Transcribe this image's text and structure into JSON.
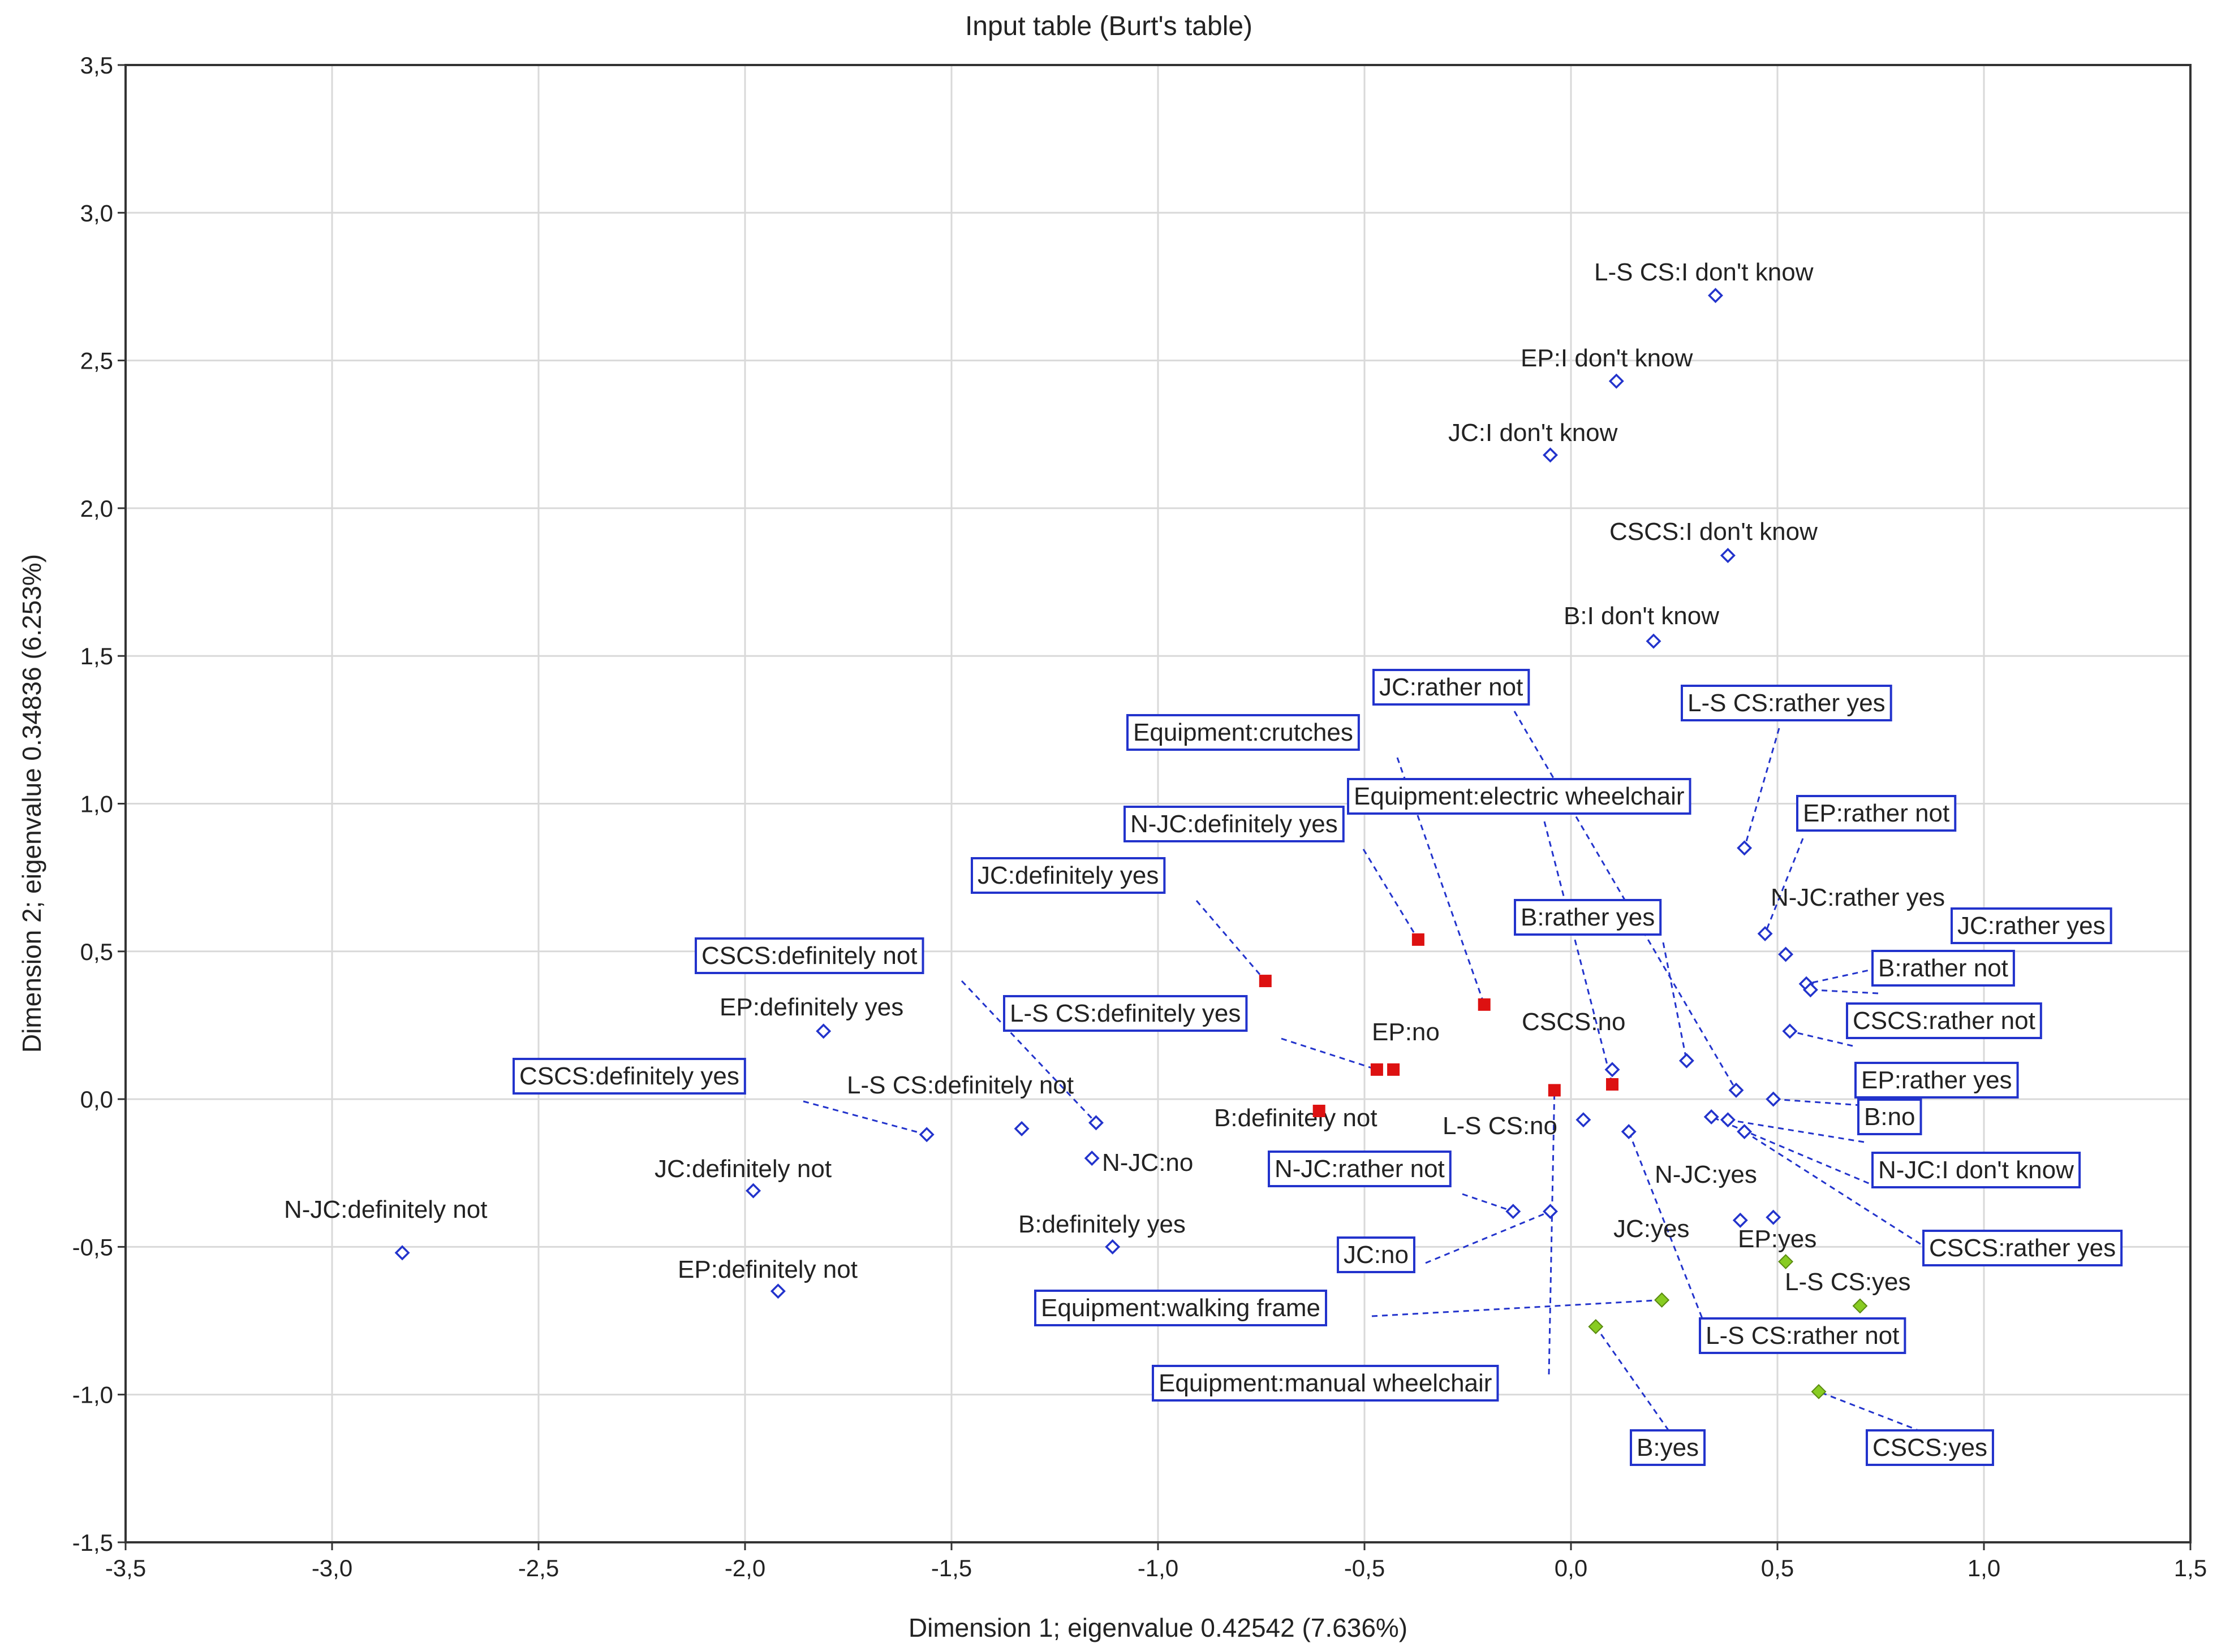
{
  "chart_data": {
    "type": "scatter",
    "title": "Input table (Burt's table)",
    "xlabel": "Dimension 1; eigenvalue 0.42542 (7.636%)",
    "ylabel": "Dimension 2; eigenvalue 0.34836 (6.253%)",
    "xlim": [
      -3.5,
      1.5
    ],
    "ylim": [
      -1.5,
      3.5
    ],
    "xticks": [
      "-3,5",
      "-3,0",
      "-2,5",
      "-2,0",
      "-1,5",
      "-1,0",
      "-0,5",
      "0,0",
      "0,5",
      "1,0",
      "1,5"
    ],
    "yticks": [
      "3,5",
      "3,0",
      "2,5",
      "2,0",
      "1,5",
      "1,0",
      "0,5",
      "0,0",
      "-0,5",
      "-1,0",
      "-1,5"
    ],
    "grid": true,
    "colors": {
      "response": "#2233cc",
      "equipment": "#dd1111",
      "yes_group": "#88cc22",
      "label_box": "#2233cc",
      "grid": "#d9d9d9"
    },
    "series": [
      {
        "name": "responses",
        "marker": "open-diamond",
        "points": [
          {
            "label": "L-S CS:I don't know",
            "x": 0.35,
            "y": 2.72,
            "boxed": false
          },
          {
            "label": "EP:I don't know",
            "x": 0.11,
            "y": 2.43,
            "boxed": false
          },
          {
            "label": "JC:I don't know",
            "x": -0.05,
            "y": 2.18,
            "boxed": false
          },
          {
            "label": "CSCS:I don't know",
            "x": 0.38,
            "y": 1.84,
            "boxed": false
          },
          {
            "label": "B:I don't know",
            "x": 0.2,
            "y": 1.55,
            "boxed": false
          },
          {
            "label": "JC:rather not",
            "x": 0.4,
            "y": 0.03,
            "boxed": true
          },
          {
            "label": "L-S CS:rather yes",
            "x": 0.42,
            "y": 0.85,
            "boxed": true
          },
          {
            "label": "EP:rather not",
            "x": 0.47,
            "y": 0.56,
            "boxed": true
          },
          {
            "label": "N-JC:rather yes",
            "x": 0.52,
            "y": 0.49,
            "boxed": false
          },
          {
            "label": "JC:rather yes",
            "x": 0.57,
            "y": 0.39,
            "boxed": true
          },
          {
            "label": "B:rather not",
            "x": 0.58,
            "y": 0.37,
            "boxed": true
          },
          {
            "label": "CSCS:rather not",
            "x": 0.53,
            "y": 0.23,
            "boxed": true
          },
          {
            "label": "B:rather yes",
            "x": 0.28,
            "y": 0.13,
            "boxed": true
          },
          {
            "label": "CSCS:no",
            "x": 0.1,
            "y": 0.1,
            "boxed": false
          },
          {
            "label": "EP:rather yes",
            "x": 0.49,
            "y": 0.0,
            "boxed": true
          },
          {
            "label": "B:no",
            "x": 0.38,
            "y": -0.07,
            "boxed": true
          },
          {
            "label": "N-JC:I don't know",
            "x": 0.34,
            "y": -0.06,
            "boxed": true
          },
          {
            "label": "CSCS:rather yes",
            "x": 0.42,
            "y": -0.11,
            "boxed": true
          },
          {
            "label": "L-S CS:no",
            "x": 0.03,
            "y": -0.07,
            "boxed": false
          },
          {
            "label": "N-JC:yes",
            "x": 0.41,
            "y": -0.41,
            "boxed": false
          },
          {
            "label": "EP:yes",
            "x": 0.49,
            "y": -0.4,
            "boxed": false
          },
          {
            "label": "L-S CS:rather not",
            "x": 0.14,
            "y": -0.11,
            "boxed": true
          },
          {
            "label": "N-JC:rather not",
            "x": -0.14,
            "y": -0.38,
            "boxed": true
          },
          {
            "label": "JC:no",
            "x": -0.05,
            "y": -0.38,
            "boxed": true
          },
          {
            "label": "CSCS:definitely not",
            "x": -1.15,
            "y": -0.08,
            "boxed": true
          },
          {
            "label": "EP:definitely yes",
            "x": -1.81,
            "y": 0.23,
            "boxed": false
          },
          {
            "label": "CSCS:definitely yes",
            "x": -1.56,
            "y": -0.12,
            "boxed": true
          },
          {
            "label": "L-S CS:definitely not",
            "x": -1.33,
            "y": -0.1,
            "boxed": false
          },
          {
            "label": "N-JC:no",
            "x": -1.16,
            "y": -0.2,
            "boxed": false
          },
          {
            "label": "JC:definitely not",
            "x": -1.98,
            "y": -0.31,
            "boxed": false
          },
          {
            "label": "N-JC:definitely not",
            "x": -2.83,
            "y": -0.52,
            "boxed": false
          },
          {
            "label": "EP:definitely not",
            "x": -1.92,
            "y": -0.65,
            "boxed": false
          },
          {
            "label": "B:definitely yes",
            "x": -1.11,
            "y": -0.5,
            "boxed": false
          }
        ]
      },
      {
        "name": "equipment-and-definitely",
        "marker": "filled-square",
        "points": [
          {
            "label": "Equipment:crutches",
            "x": -0.21,
            "y": 0.32,
            "boxed": true
          },
          {
            "label": "Equipment:electric wheelchair",
            "x": 0.1,
            "y": 0.05,
            "boxed": true
          },
          {
            "label": "N-JC:definitely yes",
            "x": -0.37,
            "y": 0.54,
            "boxed": true
          },
          {
            "label": "JC:definitely yes",
            "x": -0.74,
            "y": 0.4,
            "boxed": true
          },
          {
            "label": "L-S CS:definitely yes",
            "x": -0.47,
            "y": 0.1,
            "boxed": true
          },
          {
            "label": "EP:no",
            "x": -0.43,
            "y": 0.1,
            "boxed": false
          },
          {
            "label": "B:definitely not",
            "x": -0.61,
            "y": -0.04,
            "boxed": false
          },
          {
            "label": "Equipment:manual wheelchair",
            "x": -0.04,
            "y": 0.03,
            "boxed": true
          }
        ]
      },
      {
        "name": "yes-group",
        "marker": "filled-diamond",
        "points": [
          {
            "label": "JC:yes",
            "x": 0.22,
            "y": -0.68,
            "boxed": false
          },
          {
            "label": "Equipment:walking frame",
            "x": 0.22,
            "y": -0.68,
            "boxed": true
          },
          {
            "label": "L-S CS:yes",
            "x": 0.7,
            "y": -0.7,
            "boxed": false
          },
          {
            "label": "B:yes",
            "x": 0.06,
            "y": -0.77,
            "boxed": true
          },
          {
            "label": "CSCS:yes",
            "x": 0.6,
            "y": -0.99,
            "boxed": true
          },
          {
            "label": "EP-yes-marker",
            "x": 0.52,
            "y": -0.55,
            "boxed": false,
            "hidden_label": true
          }
        ]
      }
    ]
  }
}
